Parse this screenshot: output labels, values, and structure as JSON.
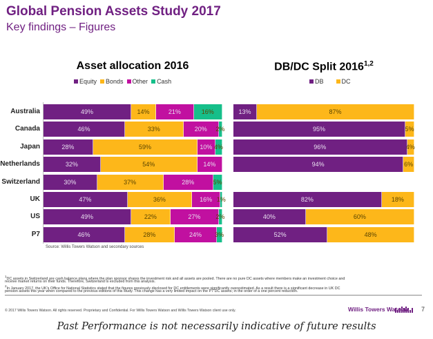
{
  "header": {
    "title": "Global Pension Assets Study 2017",
    "subtitle": "Key findings – Figures"
  },
  "colors": {
    "brand": "#702082",
    "equity": "#702082",
    "bonds": "#FDB71A",
    "other": "#C110A0",
    "cash": "#16BF8A",
    "db": "#702082",
    "dc": "#FDB71A"
  },
  "chart_data": [
    {
      "type": "bar",
      "orientation": "horizontal-stacked-100",
      "title": "Asset allocation 2016",
      "legend_position": "top",
      "categories": [
        "Australia",
        "Canada",
        "Japan",
        "Netherlands",
        "Switzerland",
        "UK",
        "US",
        "P7"
      ],
      "series": [
        {
          "name": "Equity",
          "values": [
            49,
            46,
            28,
            32,
            30,
            47,
            49,
            46
          ],
          "labels": [
            "49%",
            "46%",
            "28%",
            "32%",
            "30%",
            "47%",
            "49%",
            "46%"
          ]
        },
        {
          "name": "Bonds",
          "values": [
            14,
            33,
            59,
            54,
            37,
            36,
            22,
            28
          ],
          "labels": [
            "14%",
            "33%",
            "59%",
            "54%",
            "37%",
            "36%",
            "22%",
            "28%"
          ]
        },
        {
          "name": "Other",
          "values": [
            21,
            20,
            10,
            14,
            28,
            16,
            27,
            24
          ],
          "labels": [
            "21%",
            "20%",
            "10%",
            "14%",
            "28%",
            "16%",
            "27%",
            "24%"
          ]
        },
        {
          "name": "Cash",
          "values": [
            16,
            2,
            4,
            0,
            5,
            1,
            2,
            3
          ],
          "labels": [
            "16%",
            "2%",
            "4%",
            "",
            "5%",
            "1%",
            "2%",
            "3%"
          ]
        }
      ],
      "xlim": [
        0,
        100
      ],
      "source": "Source: Willis Towers Watson and secondary sources"
    },
    {
      "type": "bar",
      "orientation": "horizontal-stacked-100",
      "title": "DB/DC Split 2016",
      "title_superscript": "1,2",
      "legend_position": "top",
      "categories": [
        "Australia",
        "Canada",
        "Japan",
        "Netherlands",
        "Switzerland",
        "UK",
        "US",
        "P7"
      ],
      "series": [
        {
          "name": "DB",
          "values": [
            13,
            95,
            96,
            94,
            null,
            82,
            40,
            52
          ],
          "labels": [
            "13%",
            "95%",
            "96%",
            "94%",
            "",
            "82%",
            "40%",
            "52%"
          ]
        },
        {
          "name": "DC",
          "values": [
            87,
            5,
            4,
            6,
            null,
            18,
            60,
            48
          ],
          "labels": [
            "87%",
            "5%",
            "4%",
            "6%",
            "",
            "18%",
            "60%",
            "48%"
          ]
        }
      ],
      "xlim": [
        0,
        100
      ]
    }
  ],
  "footnotes": [
    {
      "mark": "1",
      "lines": [
        "DC assets in Switzerland are cash balance plans where the plan sponsor shares the investment risk and all assets are pooled. There are no pure DC assets where members make an investment choice and",
        "receive market returns on their funds. Therefore, Switzerland is excluded from this analysis."
      ]
    },
    {
      "mark": "2",
      "lines": [
        "In January 2017,  the UK's Office for National Statistics stated that the figures previously disclosed for DC entitlements were significantly overestimated. As a result there is a significant decrease in UK DC",
        "pension assets this year when compared to the previous editions of this study. This change has a very limited impact on the P7 DC assets; in the order of a one percent reduction."
      ]
    }
  ],
  "footer": {
    "copyright": "© 2017 Willis Towers Watson. All rights reserved. Proprietary and Confidential. For Willis Towers Watson and Willis Towers Watson client use only.",
    "brand": "Willis Towers Watson",
    "brand_mark": "logo-bars",
    "page_number": "7"
  },
  "disclaimer": "Past Performance is not necessarily indicative of future results"
}
